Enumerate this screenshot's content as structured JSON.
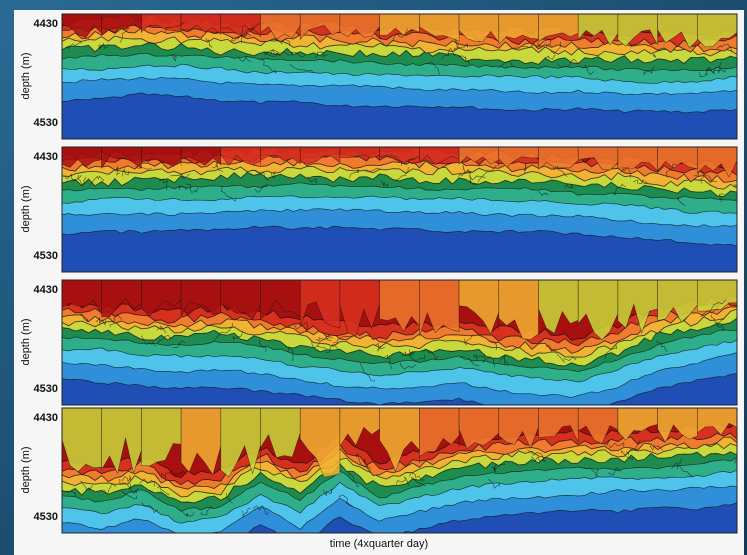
{
  "chart_data": {
    "type": "heatmap",
    "xlabel": "time (4xquarter day)",
    "ylabel": "depth (m)",
    "ylim": [
      4530,
      4430
    ],
    "yticks": [
      "4430",
      "4530"
    ],
    "colorscale": [
      "#1f4fb4",
      "#2f8fd8",
      "#4fc4ea",
      "#2fae8a",
      "#1e8c4e",
      "#c9d83a",
      "#f2b233",
      "#f07a2e",
      "#d8301f",
      "#a81010"
    ],
    "panels": [
      {
        "interface_depth": [
          4450,
          4447,
          4444,
          4446,
          4449,
          4451,
          4452,
          4453,
          4454,
          4455,
          4456,
          4457,
          4458,
          4459,
          4460,
          4461,
          4460,
          4459
        ],
        "hot_fraction": [
          0.9,
          0.85,
          0.8,
          0.75,
          0.7,
          0.6,
          0.5,
          0.45,
          0.4,
          0.4,
          0.35,
          0.3,
          0.3,
          0.25,
          0.25,
          0.2,
          0.2,
          0.15
        ]
      },
      {
        "interface_depth": [
          4448,
          4447,
          4446,
          4445,
          4444,
          4443,
          4443,
          4443,
          4444,
          4445,
          4446,
          4447,
          4448,
          4450,
          4452,
          4455,
          4458,
          4460
        ],
        "hot_fraction": [
          0.9,
          0.9,
          0.85,
          0.85,
          0.8,
          0.8,
          0.75,
          0.7,
          0.7,
          0.65,
          0.6,
          0.6,
          0.55,
          0.5,
          0.5,
          0.45,
          0.45,
          0.4
        ]
      },
      {
        "interface_depth": [
          4462,
          4465,
          4470,
          4472,
          4468,
          4474,
          4480,
          4485,
          4488,
          4486,
          4482,
          4490,
          4495,
          4498,
          4486,
          4470,
          4462,
          4455
        ],
        "hot_fraction": [
          0.95,
          0.95,
          0.9,
          0.95,
          0.9,
          0.85,
          0.8,
          0.7,
          0.6,
          0.5,
          0.4,
          0.3,
          0.25,
          0.2,
          0.2,
          0.15,
          0.1,
          0.1
        ]
      },
      {
        "interface_depth": [
          4495,
          4500,
          4490,
          4510,
          4505,
          4480,
          4500,
          4470,
          4495,
          4485,
          4475,
          4470,
          4468,
          4466,
          4465,
          4464,
          4462,
          4458
        ],
        "hot_fraction": [
          0.1,
          0.15,
          0.2,
          0.3,
          0.25,
          0.2,
          0.25,
          0.3,
          0.35,
          0.4,
          0.55,
          0.6,
          0.5,
          0.45,
          0.4,
          0.35,
          0.3,
          0.3
        ]
      }
    ]
  }
}
